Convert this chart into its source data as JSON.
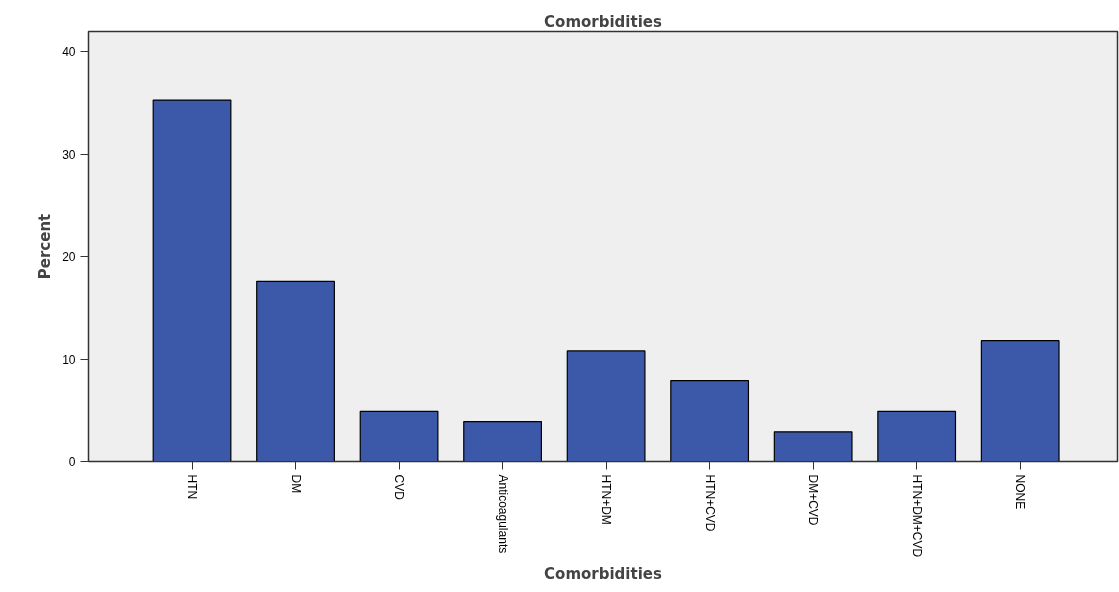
{
  "chart_data": {
    "type": "bar",
    "title": "Comorbidities",
    "xlabel": "Comorbidities",
    "ylabel": "Percent",
    "categories": [
      "HTN",
      "DM",
      "CVD",
      "Anticoagulants",
      "HTN+DM",
      "HTN+CVD",
      "DM+CVD",
      "HTN+DM+CVD",
      "NONE"
    ],
    "values": [
      35.3,
      17.6,
      4.9,
      3.9,
      10.8,
      7.9,
      2.9,
      4.9,
      11.8
    ],
    "color": "#3c58a8",
    "ylim": [
      0,
      42
    ],
    "yticks": [
      0,
      10,
      20,
      30,
      40
    ]
  }
}
